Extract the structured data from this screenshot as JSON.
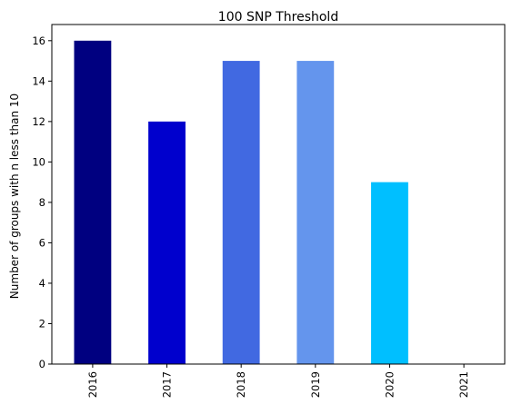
{
  "chart_data": {
    "type": "bar",
    "title": "100 SNP Threshold",
    "xlabel": "",
    "ylabel": "Number of groups with n less than 10",
    "categories": [
      "2016",
      "2017",
      "2018",
      "2019",
      "2020",
      "2021"
    ],
    "values": [
      16,
      12,
      15,
      15,
      9,
      0
    ],
    "colors": [
      "#000080",
      "#0000CD",
      "#4169E1",
      "#6495ED",
      "#00BFFF",
      "#87CEFA"
    ],
    "ylim": [
      0,
      16.8
    ],
    "yticks": [
      0,
      2,
      4,
      6,
      8,
      10,
      12,
      14,
      16
    ],
    "grid": false,
    "x_tick_rotation": "vertical"
  }
}
